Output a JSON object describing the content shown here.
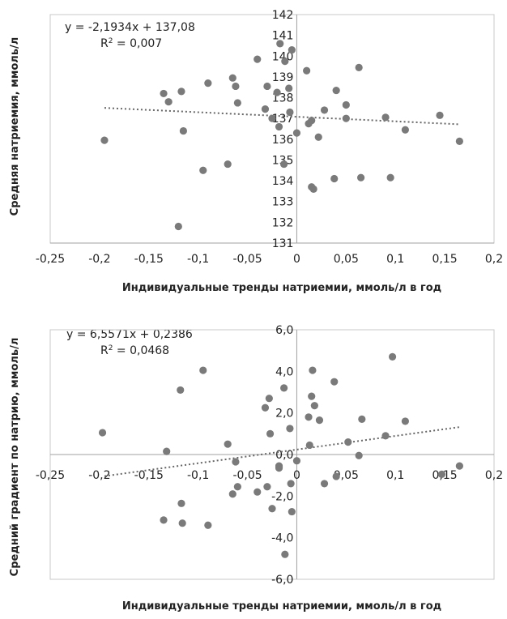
{
  "chart_data": [
    {
      "type": "scatter",
      "xlabel": "Индивидуальные тренды натриемии, ммоль/л в год",
      "ylabel": "Средняя натриемия, ммоль/л",
      "xlim": [
        -0.25,
        0.2
      ],
      "ylim": [
        131,
        142
      ],
      "x_ticks": [
        "-0,25",
        "-0,2",
        "-0,15",
        "-0,1",
        "-0,05",
        "0",
        "0,05",
        "0,1",
        "0,15",
        "0,2"
      ],
      "y_ticks": [
        "131",
        "132",
        "133",
        "134",
        "135",
        "136",
        "137",
        "138",
        "139",
        "140",
        "141",
        "142"
      ],
      "equation": "y = -2,1934x + 137,08",
      "r2_label": "R",
      "r2_sup": "2",
      "r2_value": " = 0,007",
      "trendline": {
        "slope": -2.1934,
        "intercept": 137.08,
        "x_range": [
          -0.195,
          0.165
        ]
      },
      "points": [
        [
          -0.195,
          135.95
        ],
        [
          -0.135,
          138.2
        ],
        [
          -0.13,
          137.8
        ],
        [
          -0.117,
          138.3
        ],
        [
          -0.115,
          136.4
        ],
        [
          -0.12,
          131.8
        ],
        [
          -0.095,
          134.5
        ],
        [
          -0.09,
          138.7
        ],
        [
          -0.07,
          134.8
        ],
        [
          -0.065,
          138.95
        ],
        [
          -0.062,
          138.55
        ],
        [
          -0.06,
          137.75
        ],
        [
          -0.04,
          139.85
        ],
        [
          -0.03,
          138.55
        ],
        [
          -0.032,
          137.45
        ],
        [
          -0.025,
          137.0
        ],
        [
          -0.02,
          138.25
        ],
        [
          -0.018,
          136.6
        ],
        [
          -0.017,
          140.6
        ],
        [
          -0.013,
          134.8
        ],
        [
          -0.012,
          139.75
        ],
        [
          -0.008,
          138.45
        ],
        [
          -0.007,
          137.3
        ],
        [
          -0.005,
          140.3
        ],
        [
          0.0,
          136.3
        ],
        [
          0.01,
          139.3
        ],
        [
          0.012,
          136.75
        ],
        [
          0.015,
          136.9
        ],
        [
          0.015,
          133.7
        ],
        [
          0.017,
          133.6
        ],
        [
          0.022,
          136.1
        ],
        [
          0.028,
          137.4
        ],
        [
          0.038,
          134.1
        ],
        [
          0.04,
          138.35
        ],
        [
          0.05,
          137.65
        ],
        [
          0.05,
          137.0
        ],
        [
          0.063,
          139.45
        ],
        [
          0.065,
          134.15
        ],
        [
          0.09,
          137.05
        ],
        [
          0.095,
          134.15
        ],
        [
          0.11,
          136.45
        ],
        [
          0.145,
          137.15
        ],
        [
          0.165,
          135.9
        ]
      ]
    },
    {
      "type": "scatter",
      "xlabel": "Индивидуальные тренды натриемии, ммоль/л в год",
      "ylabel": "Средний градиент по натрию, ммоль/л",
      "xlim": [
        -0.25,
        0.2
      ],
      "ylim": [
        -6,
        6
      ],
      "x_ticks": [
        "-0,25",
        "-0,2",
        "-0,15",
        "-0,1",
        "-0,05",
        "0",
        "0,05",
        "0,1",
        "0,15",
        "0,2"
      ],
      "y_ticks": [
        "-6,0",
        "-4,0",
        "-2,0",
        "0,0",
        "2,0",
        "4,0",
        "6,0"
      ],
      "y_tick_values": [
        -6,
        -4,
        -2,
        0,
        2,
        4,
        6
      ],
      "equation": "y = 6,5571x + 0,2386",
      "r2_label": "R",
      "r2_sup": "2",
      "r2_value": " = 0,0468",
      "trendline": {
        "slope": 6.5571,
        "intercept": 0.2386,
        "x_range": [
          -0.195,
          0.165
        ]
      },
      "points": [
        [
          -0.197,
          1.05
        ],
        [
          -0.135,
          -3.15
        ],
        [
          -0.132,
          0.15
        ],
        [
          -0.118,
          3.1
        ],
        [
          -0.117,
          -2.35
        ],
        [
          -0.116,
          -3.3
        ],
        [
          -0.095,
          4.05
        ],
        [
          -0.09,
          -3.4
        ],
        [
          -0.07,
          0.5
        ],
        [
          -0.065,
          -1.9
        ],
        [
          -0.062,
          -0.35
        ],
        [
          -0.06,
          -1.55
        ],
        [
          -0.04,
          -1.8
        ],
        [
          -0.032,
          2.25
        ],
        [
          -0.03,
          -1.55
        ],
        [
          -0.028,
          2.7
        ],
        [
          -0.027,
          1.0
        ],
        [
          -0.025,
          -2.6
        ],
        [
          -0.018,
          -0.65
        ],
        [
          -0.018,
          -0.55
        ],
        [
          -0.013,
          3.2
        ],
        [
          -0.012,
          -4.8
        ],
        [
          -0.007,
          1.25
        ],
        [
          -0.006,
          -1.4
        ],
        [
          -0.005,
          -2.75
        ],
        [
          0.0,
          -0.3
        ],
        [
          0.012,
          1.8
        ],
        [
          0.013,
          0.45
        ],
        [
          0.015,
          2.8
        ],
        [
          0.016,
          4.05
        ],
        [
          0.018,
          2.35
        ],
        [
          0.023,
          1.65
        ],
        [
          0.028,
          -1.4
        ],
        [
          0.038,
          3.5
        ],
        [
          0.04,
          -1.05
        ],
        [
          0.052,
          0.6
        ],
        [
          0.063,
          -0.05
        ],
        [
          0.066,
          1.7
        ],
        [
          0.09,
          0.9
        ],
        [
          0.097,
          4.7
        ],
        [
          0.11,
          1.6
        ],
        [
          0.147,
          -0.95
        ],
        [
          0.165,
          -0.55
        ]
      ]
    }
  ]
}
